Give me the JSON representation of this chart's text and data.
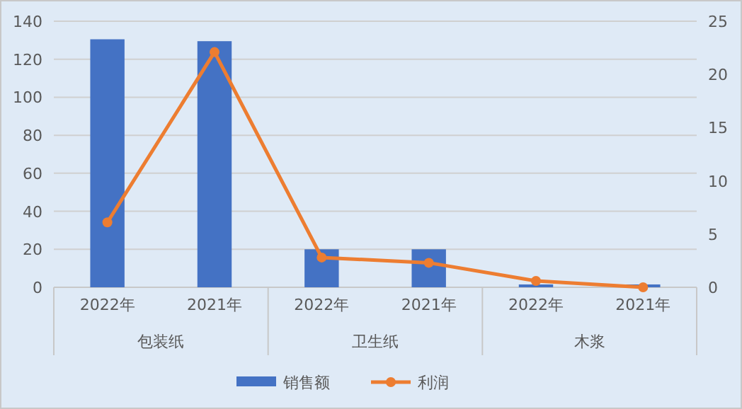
{
  "chart_data": {
    "type": "bar",
    "categories": [
      "2022年",
      "2021年",
      "2022年",
      "2021年",
      "2022年",
      "2021年"
    ],
    "annotations": [
      "包装纸",
      "卫生纸",
      "木浆"
    ],
    "series": [
      {
        "name": "销售额",
        "color": "#4472c4",
        "values": [
          130.5,
          129.5,
          20,
          20,
          1.5,
          1.5
        ]
      },
      {
        "name": "利润",
        "type": "line",
        "axis": "y2",
        "color": "#ed7d31",
        "marker": "circle",
        "values": [
          6.1,
          22.1,
          2.8,
          2.3,
          0.6,
          0
        ]
      }
    ],
    "ylim": [
      0,
      140
    ],
    "yticks": [
      0,
      20,
      40,
      60,
      80,
      100,
      120,
      140
    ],
    "y2lim": [
      0,
      25
    ],
    "y2ticks": [
      0,
      5,
      10,
      15,
      20,
      25
    ],
    "grid": "y",
    "legend": "bottom"
  }
}
